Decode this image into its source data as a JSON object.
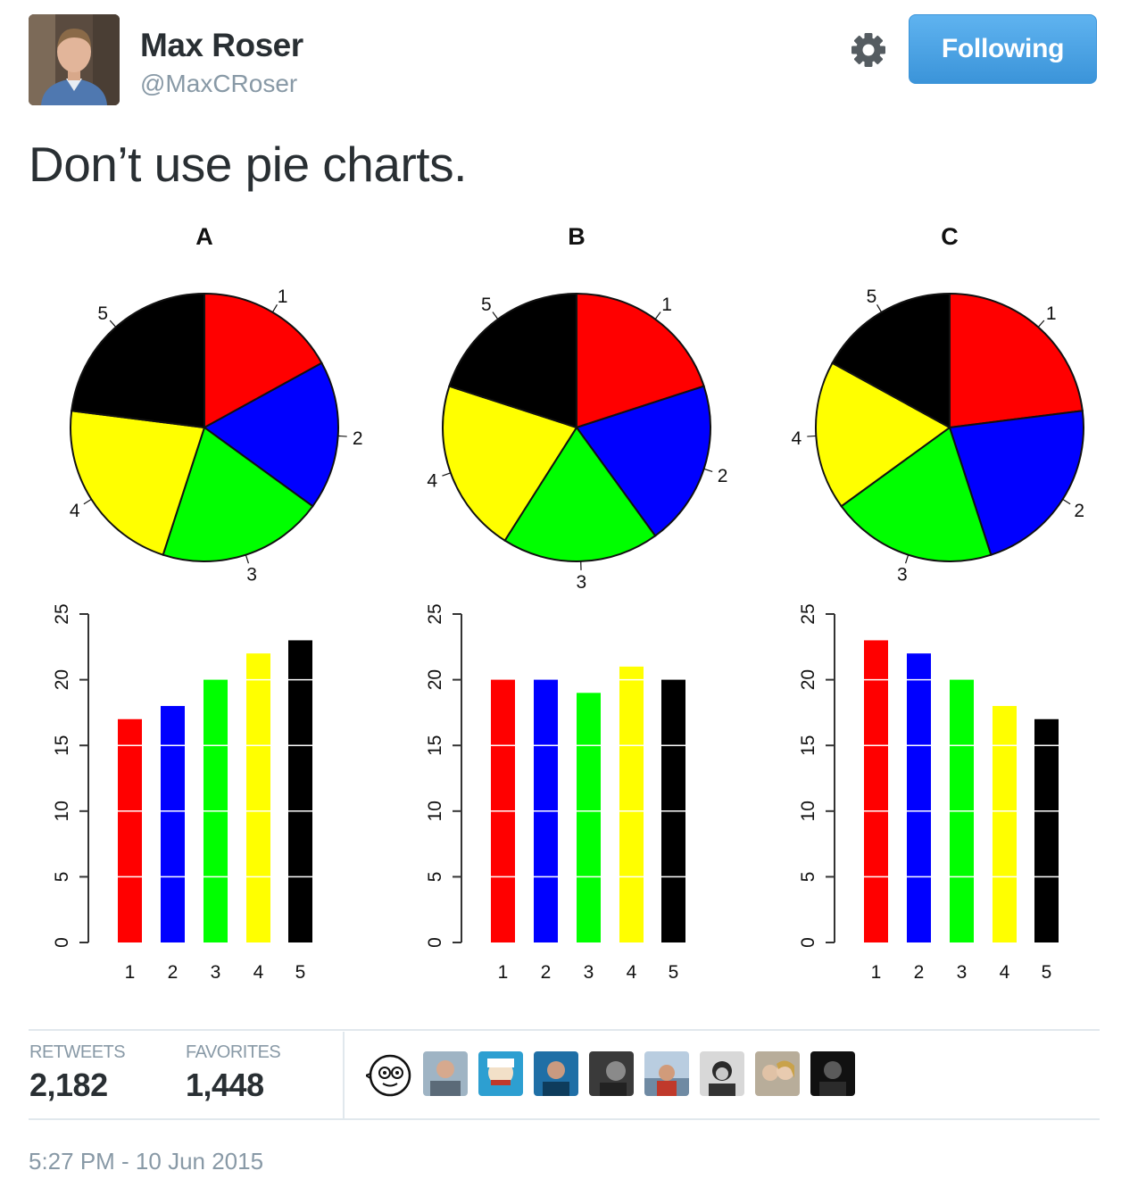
{
  "user": {
    "name": "Max Roser",
    "handle": "@MaxCRoser"
  },
  "follow_button": {
    "label": "Following"
  },
  "tweet": {
    "text": "Don’t use pie charts."
  },
  "chart_data": [
    {
      "type": "pie",
      "title": "A",
      "categories": [
        "1",
        "2",
        "3",
        "4",
        "5"
      ],
      "values": [
        17,
        18,
        20,
        22,
        23
      ],
      "colors": [
        "#ff0000",
        "#0000ff",
        "#00ff00",
        "#ffff00",
        "#000000"
      ]
    },
    {
      "type": "pie",
      "title": "B",
      "categories": [
        "1",
        "2",
        "3",
        "4",
        "5"
      ],
      "values": [
        20,
        20,
        19,
        21,
        20
      ],
      "colors": [
        "#ff0000",
        "#0000ff",
        "#00ff00",
        "#ffff00",
        "#000000"
      ]
    },
    {
      "type": "pie",
      "title": "C",
      "categories": [
        "1",
        "2",
        "3",
        "4",
        "5"
      ],
      "values": [
        23,
        22,
        20,
        18,
        17
      ],
      "colors": [
        "#ff0000",
        "#0000ff",
        "#00ff00",
        "#ffff00",
        "#000000"
      ]
    },
    {
      "type": "bar",
      "categories": [
        "1",
        "2",
        "3",
        "4",
        "5"
      ],
      "values": [
        17,
        18,
        20,
        22,
        23
      ],
      "ylim": [
        0,
        25
      ],
      "yticks": [
        "0",
        "5",
        "10",
        "15",
        "20",
        "25"
      ],
      "colors": [
        "#ff0000",
        "#0000ff",
        "#00ff00",
        "#ffff00",
        "#000000"
      ]
    },
    {
      "type": "bar",
      "categories": [
        "1",
        "2",
        "3",
        "4",
        "5"
      ],
      "values": [
        20,
        20,
        19,
        21,
        20
      ],
      "ylim": [
        0,
        25
      ],
      "yticks": [
        "0",
        "5",
        "10",
        "15",
        "20",
        "25"
      ],
      "colors": [
        "#ff0000",
        "#0000ff",
        "#00ff00",
        "#ffff00",
        "#000000"
      ]
    },
    {
      "type": "bar",
      "categories": [
        "1",
        "2",
        "3",
        "4",
        "5"
      ],
      "values": [
        23,
        22,
        20,
        18,
        17
      ],
      "ylim": [
        0,
        25
      ],
      "yticks": [
        "0",
        "5",
        "10",
        "15",
        "20",
        "25"
      ],
      "colors": [
        "#ff0000",
        "#0000ff",
        "#00ff00",
        "#ffff00",
        "#000000"
      ]
    }
  ],
  "stats": {
    "retweets_label": "RETWEETS",
    "retweets_value": "2,182",
    "favorites_label": "FAVORITES",
    "favorites_value": "1,448"
  },
  "favoriter_avatars": [
    "cartoon-face-avatar",
    "user-avatar",
    "user-avatar",
    "user-avatar",
    "user-avatar",
    "user-avatar",
    "user-avatar",
    "user-avatar",
    "user-avatar"
  ],
  "timestamp": "5:27 PM - 10 Jun 2015",
  "colors": {
    "name": "#292f33",
    "secondary": "#8899a6",
    "button": "#55acee",
    "divider": "#e1e8ed"
  }
}
